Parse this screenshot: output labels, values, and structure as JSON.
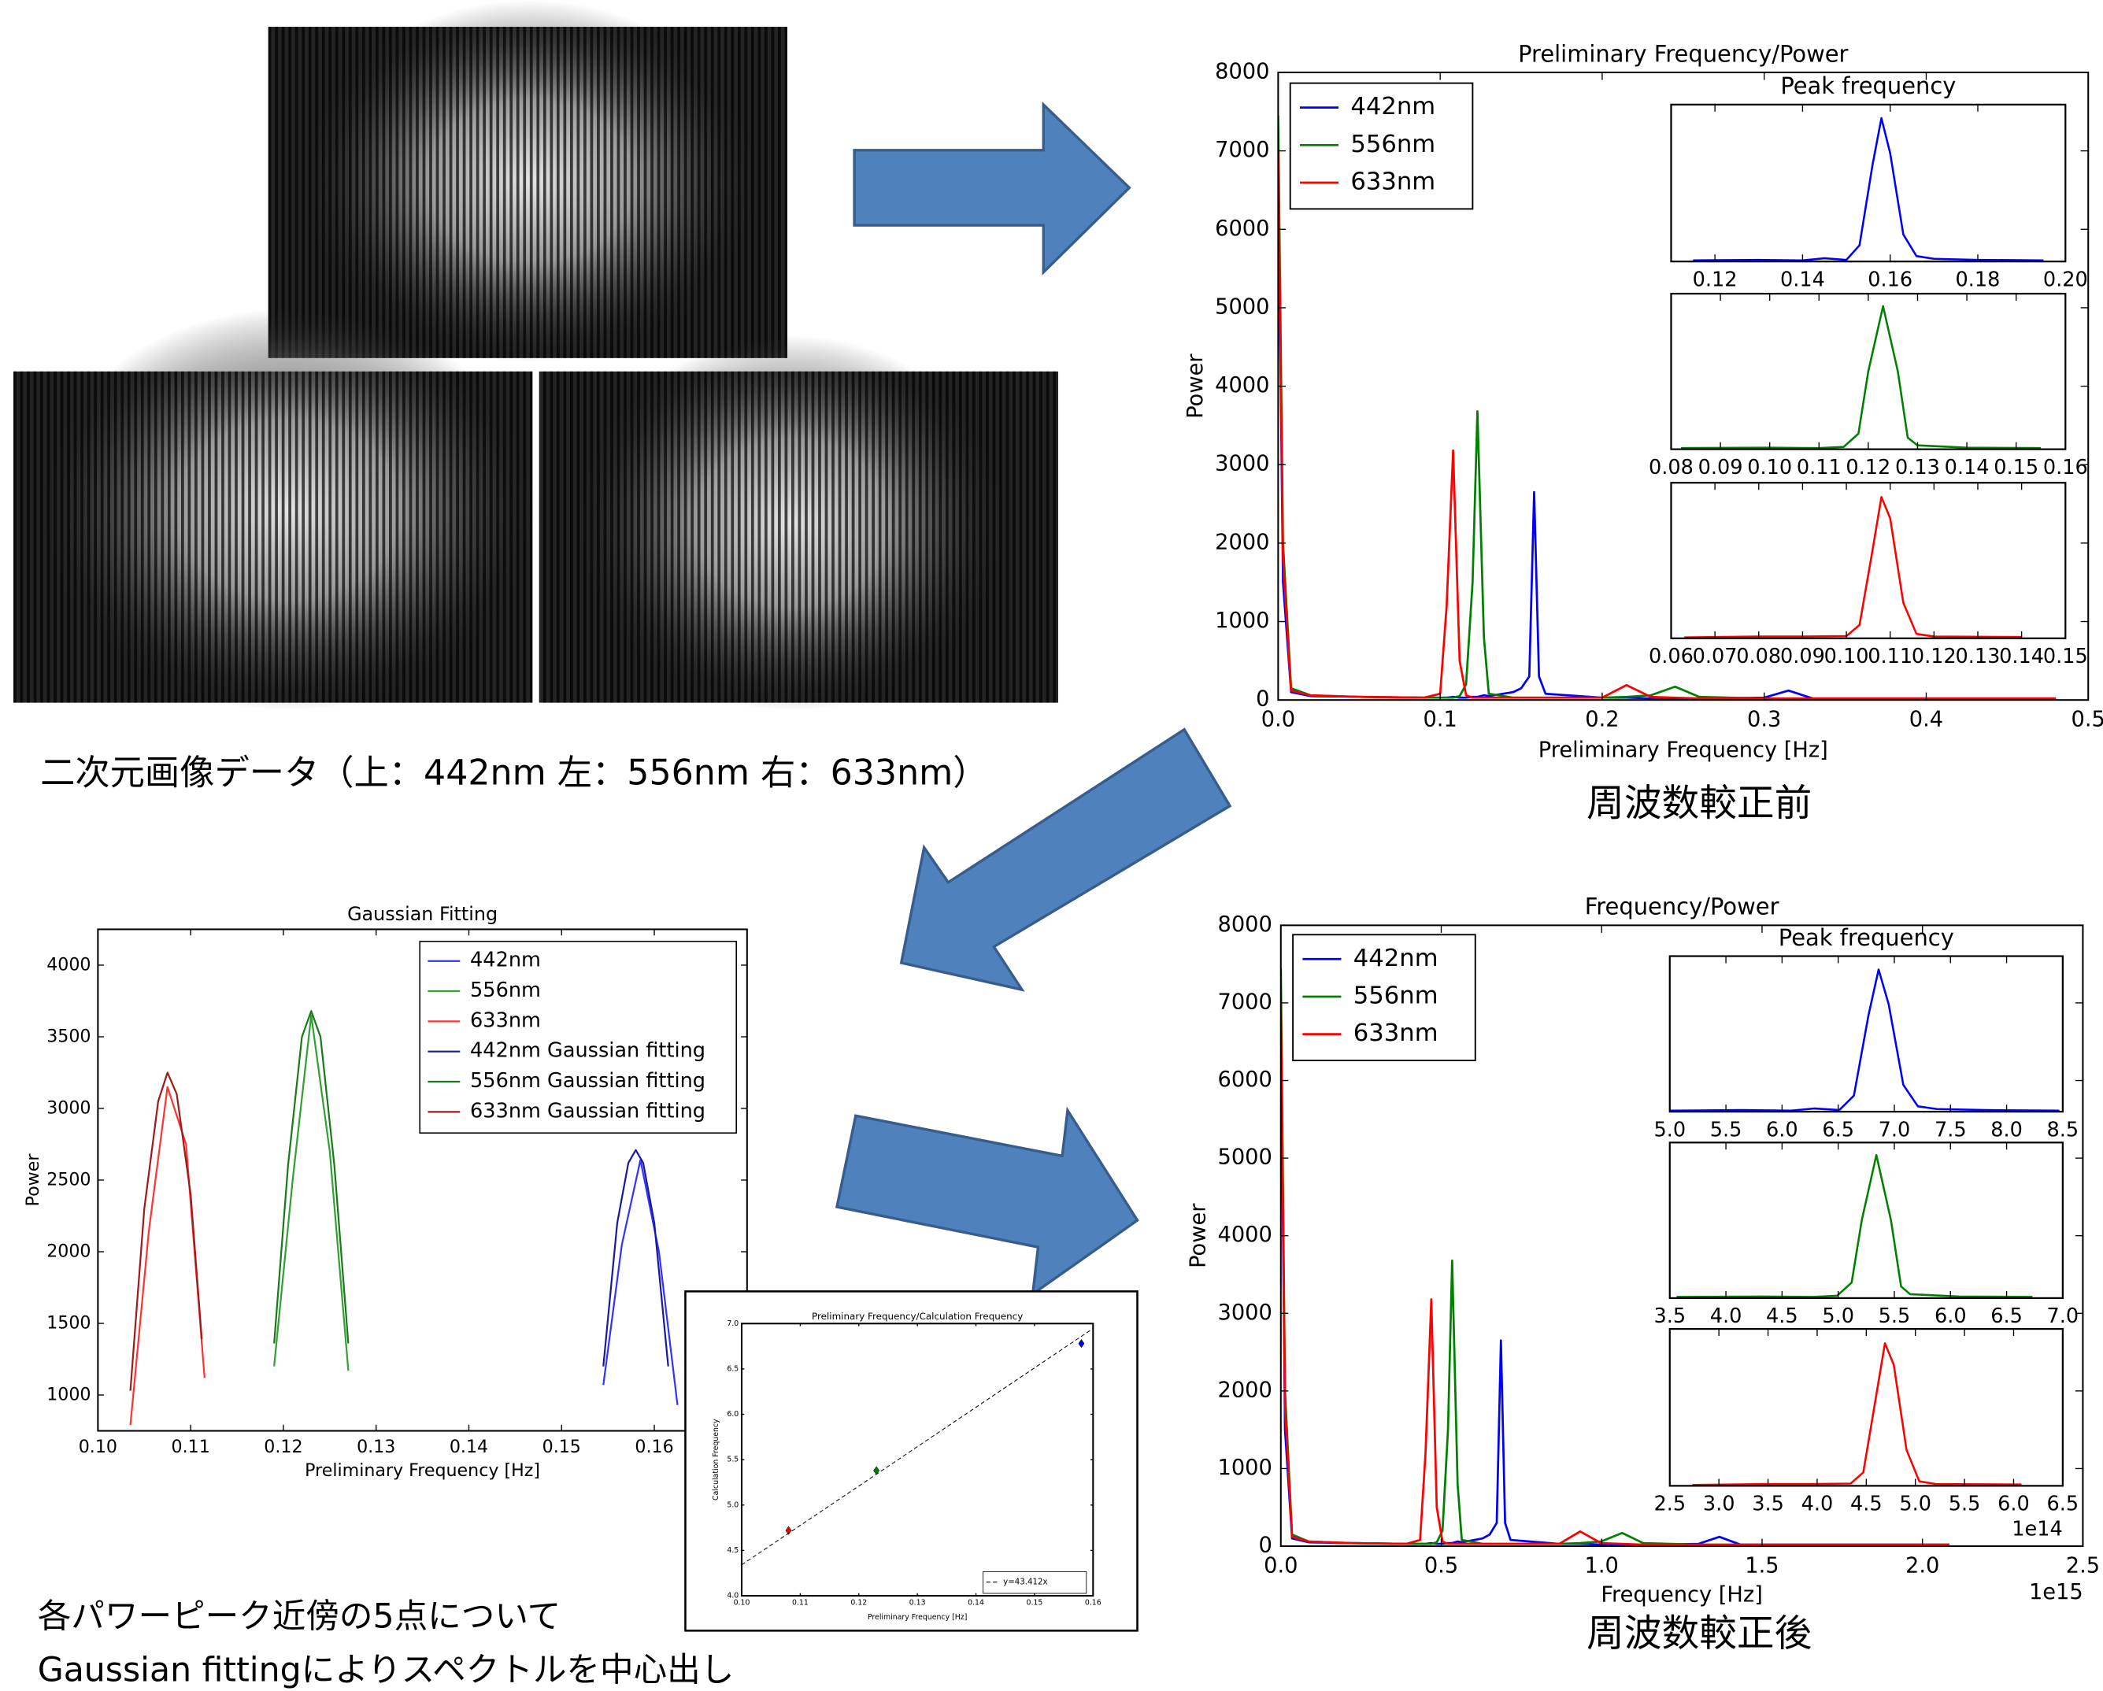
{
  "captions": {
    "images": "二次元画像データ（上：442nm 左：556nm 右：633nm）",
    "before": "周波数較正前",
    "after": "周波数較正後",
    "fitting_line1": "各パワーピーク近傍の5点について",
    "fitting_line2": "Gaussian fittingによりスペクトルを中心出し"
  },
  "chart_data": [
    {
      "type": "line",
      "title": "Preliminary Frequency/Power",
      "x_label": "Preliminary Frequency [Hz]",
      "y_label": "Power",
      "x": [
        0,
        0.003,
        0.008,
        0.02,
        0.05,
        0.09,
        0.1,
        0.104,
        0.108,
        0.112,
        0.116,
        0.12,
        0.123,
        0.127,
        0.13,
        0.145,
        0.15,
        0.155,
        0.158,
        0.161,
        0.165,
        0.2,
        0.215,
        0.23,
        0.245,
        0.26,
        0.3,
        0.315,
        0.33,
        0.4,
        0.48
      ],
      "xlim": [
        0,
        0.5
      ],
      "xticks": [
        {
          "value": 0,
          "label": "0.0"
        },
        0.1,
        0.2,
        0.3,
        0.4,
        0.5
      ],
      "ylim": [
        0,
        8000
      ],
      "yticks": [
        0,
        1000,
        2000,
        3000,
        4000,
        5000,
        6000,
        7000,
        8000
      ],
      "legend": "upper left",
      "series": [
        {
          "name": "442nm",
          "color": "#0000ff",
          "values": [
            6800,
            1500,
            100,
            50,
            40,
            30,
            30,
            30,
            40,
            30,
            30,
            40,
            40,
            60,
            50,
            100,
            150,
            300,
            2650,
            300,
            80,
            30,
            30,
            20,
            20,
            20,
            30,
            120,
            20,
            20,
            20
          ]
        },
        {
          "name": "556nm",
          "color": "#008000",
          "values": [
            7450,
            2000,
            150,
            60,
            40,
            30,
            30,
            30,
            30,
            50,
            200,
            1500,
            3680,
            800,
            80,
            30,
            30,
            30,
            30,
            30,
            30,
            30,
            40,
            60,
            170,
            40,
            20,
            20,
            20,
            20,
            20
          ]
        },
        {
          "name": "633nm",
          "color": "#ff0000",
          "values": [
            7000,
            1800,
            120,
            60,
            40,
            30,
            80,
            1200,
            3180,
            500,
            60,
            30,
            30,
            30,
            30,
            30,
            30,
            30,
            30,
            30,
            30,
            30,
            190,
            40,
            30,
            20,
            20,
            20,
            20,
            20,
            20
          ]
        }
      ],
      "insets": [
        {
          "type": "line",
          "title": "Peak frequency",
          "xlim": [
            0.11,
            0.2
          ],
          "xticks": [
            0.12,
            0.14,
            0.16,
            0.18,
            {
              "value": 0.2,
              "label": "0.20"
            }
          ],
          "ylim": [
            0,
            2900
          ],
          "series": [
            {
              "color": "#0000ff",
              "x": [
                0.115,
                0.13,
                0.14,
                0.145,
                0.15,
                0.153,
                0.156,
                0.158,
                0.16,
                0.163,
                0.166,
                0.17,
                0.18,
                0.195
              ],
              "values": [
                20,
                30,
                20,
                60,
                30,
                300,
                1800,
                2650,
                2000,
                500,
                100,
                50,
                30,
                20
              ]
            }
          ]
        },
        {
          "type": "line",
          "xlim": [
            0.08,
            0.16
          ],
          "xticks": [
            0.08,
            0.09,
            {
              "value": 0.1,
              "label": "0.10"
            },
            0.11,
            0.12,
            0.13,
            0.14,
            0.15,
            0.16
          ],
          "ylim": [
            0,
            4000
          ],
          "series": [
            {
              "color": "#008000",
              "x": [
                0.082,
                0.1,
                0.11,
                0.115,
                0.118,
                0.12,
                0.123,
                0.126,
                0.128,
                0.13,
                0.14,
                0.155
              ],
              "values": [
                30,
                40,
                30,
                60,
                400,
                2000,
                3680,
                2000,
                300,
                100,
                40,
                30
              ]
            }
          ]
        },
        {
          "type": "line",
          "xlim": [
            0.06,
            0.15
          ],
          "xticks": [
            0.06,
            0.07,
            0.08,
            0.09,
            {
              "value": 0.1,
              "label": "0.10"
            },
            0.11,
            0.12,
            0.13,
            0.14,
            0.15
          ],
          "ylim": [
            0,
            3500
          ],
          "series": [
            {
              "color": "#ff0000",
              "x": [
                0.063,
                0.08,
                0.09,
                0.1,
                0.103,
                0.106,
                0.108,
                0.11,
                0.113,
                0.116,
                0.12,
                0.14
              ],
              "values": [
                20,
                40,
                40,
                50,
                300,
                2000,
                3180,
                2700,
                800,
                100,
                40,
                30
              ]
            }
          ]
        }
      ]
    },
    {
      "type": "line",
      "title": "Gaussian Fitting",
      "x_label": "Preliminary Frequency [Hz]",
      "y_label": "Power",
      "xlim": [
        0.1,
        0.17
      ],
      "xticks": [
        {
          "value": 0.1,
          "label": "0.10"
        },
        0.11,
        0.12,
        0.13,
        0.14,
        0.15,
        0.16
      ],
      "ylim": [
        750,
        4250
      ],
      "yticks": [
        1000,
        1500,
        2000,
        2500,
        3000,
        3500,
        4000
      ],
      "legend": "upper right",
      "series": [
        {
          "name": "442nm",
          "color": "#3333ff",
          "x": [
            0.1545,
            0.1565,
            0.1585,
            0.1605,
            0.1625
          ],
          "values": [
            1070,
            2050,
            2640,
            2000,
            930
          ]
        },
        {
          "name": "556nm",
          "color": "#33a033",
          "x": [
            0.119,
            0.121,
            0.123,
            0.125,
            0.127
          ],
          "values": [
            1200,
            2500,
            3650,
            2700,
            1170
          ]
        },
        {
          "name": "633nm",
          "color": "#ff3333",
          "x": [
            0.1035,
            0.1055,
            0.1075,
            0.1095,
            0.1115
          ],
          "values": [
            790,
            2150,
            3150,
            2750,
            1120
          ]
        },
        {
          "name": "442nm Gaussian fitting",
          "color": "#1a1a9e",
          "x": [
            0.1545,
            0.156,
            0.1572,
            0.158,
            0.1588,
            0.16,
            0.1615
          ],
          "values": [
            1200,
            2200,
            2620,
            2710,
            2620,
            2200,
            1200
          ]
        },
        {
          "name": "556nm Gaussian fitting",
          "color": "#1a7a1a",
          "x": [
            0.119,
            0.1205,
            0.122,
            0.123,
            0.124,
            0.1255,
            0.127
          ],
          "values": [
            1360,
            2600,
            3500,
            3680,
            3500,
            2600,
            1360
          ]
        },
        {
          "name": "633nm Gaussian fitting",
          "color": "#a01a1a",
          "x": [
            0.1035,
            0.105,
            0.1065,
            0.1075,
            0.1085,
            0.11,
            0.1112
          ],
          "values": [
            1030,
            2300,
            3050,
            3250,
            3100,
            2400,
            1390
          ]
        }
      ]
    },
    {
      "type": "scatter",
      "title": "Preliminary Frequency/Calculation Frequency",
      "x_label": "Preliminary Frequency [Hz]",
      "y_label": "Calculation Frequency",
      "xlim": [
        0.1,
        0.16
      ],
      "xticks": [
        {
          "value": 0.1,
          "label": "0.10"
        },
        0.11,
        0.12,
        0.13,
        0.14,
        0.15,
        0.16
      ],
      "ylim": [
        4,
        7
      ],
      "yticks": [
        {
          "value": 4,
          "label": "4.0"
        },
        4.5,
        {
          "value": 5,
          "label": "5.0"
        },
        5.5,
        {
          "value": 6,
          "label": "6.0"
        },
        6.5,
        {
          "value": 7,
          "label": "7.0"
        }
      ],
      "legend": "lower right",
      "series": [
        {
          "color": "#ff0000",
          "x": [
            0.108
          ],
          "values": [
            4.72
          ]
        },
        {
          "color": "#008000",
          "x": [
            0.123
          ],
          "values": [
            5.38
          ]
        },
        {
          "color": "#0000ff",
          "x": [
            0.158
          ],
          "values": [
            6.78
          ]
        }
      ],
      "fit": {
        "name": "y=43.412x",
        "slope": 43.412,
        "color": "#000000"
      }
    },
    {
      "type": "line",
      "title": "Frequency/Power",
      "x_label": "Frequency [Hz]",
      "y_label": "Power",
      "x_offset_label": "1e15",
      "x": [
        0,
        0.013,
        0.035,
        0.087,
        0.217,
        0.391,
        0.434,
        0.451,
        0.469,
        0.486,
        0.504,
        0.521,
        0.534,
        0.551,
        0.564,
        0.629,
        0.651,
        0.673,
        0.686,
        0.699,
        0.716,
        0.868,
        0.933,
        0.998,
        1.064,
        1.129,
        1.302,
        1.367,
        1.433,
        1.736,
        2.084
      ],
      "xlim": [
        0,
        2.5
      ],
      "xticks": [
        {
          "value": 0,
          "label": "0.0"
        },
        0.5,
        {
          "value": 1,
          "label": "1.0"
        },
        1.5,
        {
          "value": 2,
          "label": "2.0"
        },
        2.5
      ],
      "ylim": [
        0,
        8000
      ],
      "yticks": [
        0,
        1000,
        2000,
        3000,
        4000,
        5000,
        6000,
        7000,
        8000
      ],
      "legend": "upper left",
      "series": [
        {
          "name": "442nm",
          "color": "#0000ff",
          "values": [
            6800,
            1500,
            100,
            50,
            40,
            30,
            30,
            30,
            40,
            30,
            30,
            40,
            40,
            60,
            50,
            100,
            150,
            300,
            2650,
            300,
            80,
            30,
            30,
            20,
            20,
            20,
            30,
            120,
            20,
            20,
            20
          ]
        },
        {
          "name": "556nm",
          "color": "#008000",
          "values": [
            7450,
            2000,
            150,
            60,
            40,
            30,
            30,
            30,
            30,
            50,
            200,
            1500,
            3680,
            800,
            80,
            30,
            30,
            30,
            30,
            30,
            30,
            30,
            40,
            60,
            170,
            40,
            20,
            20,
            20,
            20,
            20
          ]
        },
        {
          "name": "633nm",
          "color": "#ff0000",
          "values": [
            7000,
            1800,
            120,
            60,
            40,
            30,
            80,
            1200,
            3180,
            500,
            60,
            30,
            30,
            30,
            30,
            30,
            30,
            30,
            30,
            30,
            30,
            30,
            190,
            40,
            30,
            20,
            20,
            20,
            20,
            20,
            20
          ]
        }
      ],
      "insets": [
        {
          "type": "line",
          "title": "Peak frequency",
          "xlim": [
            5,
            8.5
          ],
          "xticks": [
            {
              "value": 5,
              "label": "5.0"
            },
            5.5,
            {
              "value": 6,
              "label": "6.0"
            },
            6.5,
            {
              "value": 7,
              "label": "7.0"
            },
            7.5,
            {
              "value": 8,
              "label": "8.0"
            },
            8.5
          ],
          "ylim": [
            0,
            2900
          ],
          "series": [
            {
              "color": "#0000ff",
              "x": [
                5.0,
                5.64,
                6.08,
                6.29,
                6.51,
                6.64,
                6.77,
                6.86,
                6.95,
                7.08,
                7.21,
                7.38,
                7.81,
                8.47
              ],
              "values": [
                20,
                30,
                20,
                60,
                30,
                300,
                1800,
                2650,
                2000,
                500,
                100,
                50,
                30,
                20
              ]
            }
          ]
        },
        {
          "type": "line",
          "xlim": [
            3.5,
            7
          ],
          "xticks": [
            3.5,
            {
              "value": 4,
              "label": "4.0"
            },
            4.5,
            {
              "value": 5,
              "label": "5.0"
            },
            5.5,
            {
              "value": 6,
              "label": "6.0"
            },
            6.5,
            {
              "value": 7,
              "label": "7.0"
            }
          ],
          "ylim": [
            0,
            4000
          ],
          "series": [
            {
              "color": "#008000",
              "x": [
                3.56,
                4.34,
                4.78,
                4.99,
                5.12,
                5.21,
                5.34,
                5.47,
                5.56,
                5.64,
                6.08,
                6.73
              ],
              "values": [
                30,
                40,
                30,
                60,
                400,
                2000,
                3680,
                2000,
                300,
                100,
                40,
                30
              ]
            }
          ]
        },
        {
          "type": "line",
          "x_offset_label": "1e14",
          "xlim": [
            2.5,
            6.5
          ],
          "xticks": [
            2.5,
            {
              "value": 3,
              "label": "3.0"
            },
            3.5,
            {
              "value": 4,
              "label": "4.0"
            },
            4.5,
            {
              "value": 5,
              "label": "5.0"
            },
            5.5,
            {
              "value": 6,
              "label": "6.0"
            },
            6.5
          ],
          "ylim": [
            0,
            3500
          ],
          "series": [
            {
              "color": "#ff0000",
              "x": [
                2.73,
                3.47,
                3.91,
                4.34,
                4.47,
                4.6,
                4.69,
                4.78,
                4.91,
                5.04,
                5.21,
                6.08
              ],
              "values": [
                20,
                40,
                40,
                50,
                300,
                2000,
                3180,
                2700,
                800,
                100,
                40,
                30
              ]
            }
          ]
        }
      ]
    }
  ]
}
